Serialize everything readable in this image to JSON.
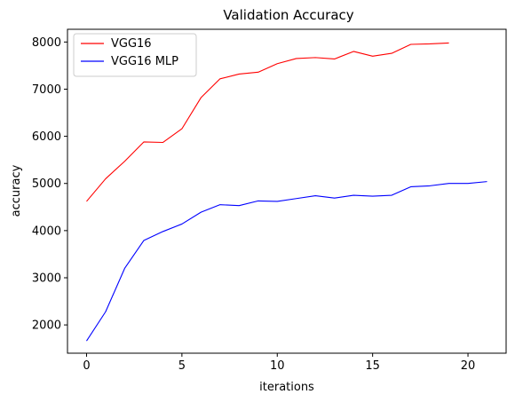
{
  "chart_data": {
    "type": "line",
    "title": "Validation Accuracy",
    "xlabel": "iterations",
    "ylabel": "accuracy",
    "xlim": [
      -1,
      22
    ],
    "ylim": [
      1400,
      8270
    ],
    "xticks": [
      0,
      5,
      10,
      15,
      20
    ],
    "yticks": [
      2000,
      3000,
      4000,
      5000,
      6000,
      7000,
      8000
    ],
    "grid": false,
    "legend_position": "top-left",
    "series": [
      {
        "name": "VGG16",
        "color": "#ff0000",
        "x": [
          0,
          1,
          2,
          3,
          4,
          5,
          6,
          7,
          8,
          9,
          10,
          11,
          12,
          13,
          14,
          15,
          16,
          17,
          18,
          19
        ],
        "values": [
          4620,
          5100,
          5470,
          5880,
          5870,
          6160,
          6820,
          7220,
          7320,
          7360,
          7540,
          7650,
          7670,
          7640,
          7800,
          7700,
          7760,
          7950,
          7960,
          7980
        ]
      },
      {
        "name": "VGG16 MLP",
        "color": "#0000ff",
        "x": [
          0,
          1,
          2,
          3,
          4,
          5,
          6,
          7,
          8,
          9,
          10,
          11,
          12,
          13,
          14,
          15,
          16,
          17,
          18,
          19,
          20,
          21
        ],
        "values": [
          1660,
          2280,
          3200,
          3790,
          3980,
          4140,
          4390,
          4550,
          4530,
          4630,
          4620,
          4680,
          4740,
          4690,
          4750,
          4730,
          4750,
          4930,
          4950,
          5000,
          5000,
          5040
        ]
      }
    ]
  }
}
